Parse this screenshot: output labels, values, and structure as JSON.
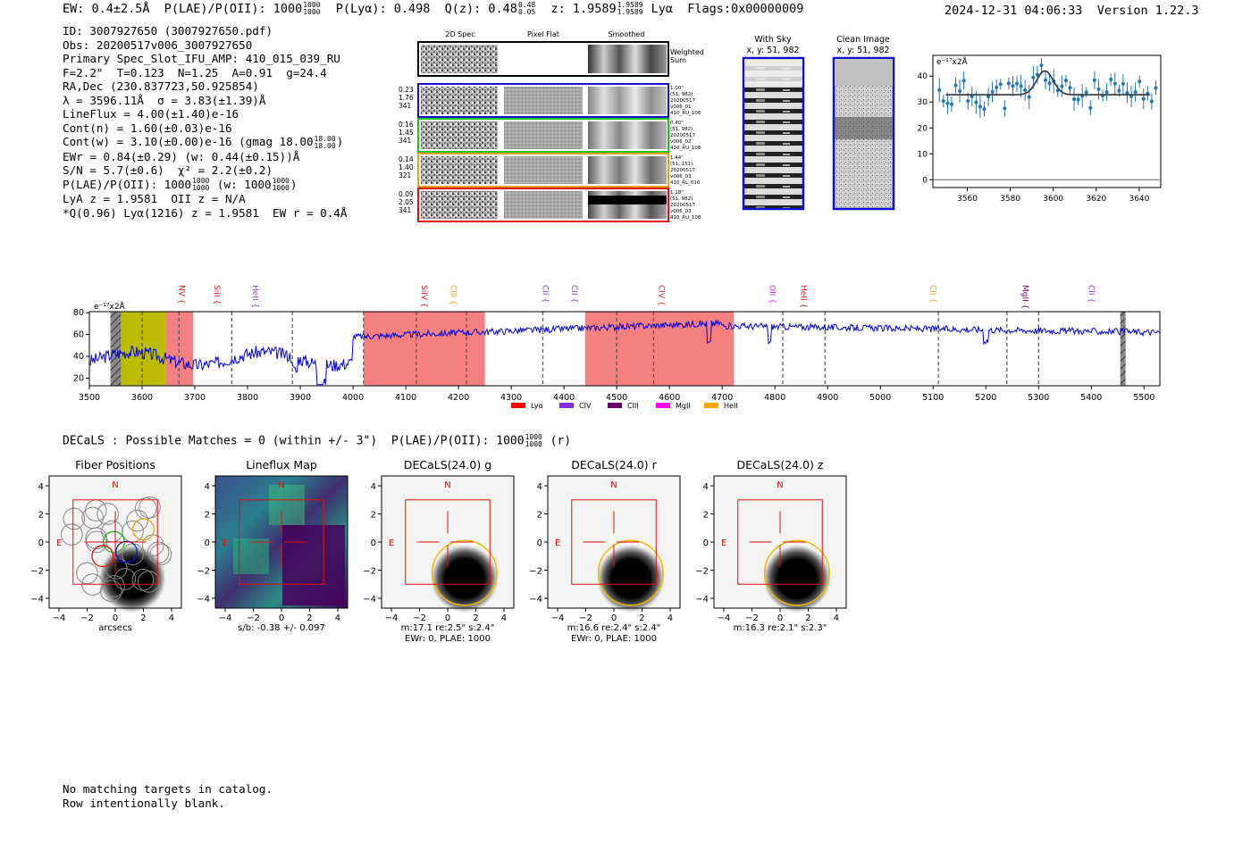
{
  "header": {
    "top_left": "EW: 0.4±2.5Å  P(LAE)/P(OII): 1000",
    "plae_frac": [
      "1000",
      "1000"
    ],
    "plya": "  P(Lyα): 0.498  Q(z): 0.48",
    "qz_frac": [
      "0.48",
      "0.05"
    ],
    "z_text": "  z: 1.9589",
    "z_frac": [
      "1.9589",
      "1.9589"
    ],
    "z_tail": " Lyα  Flags:0x00000009",
    "datetime": "2024-12-31 04:06:33",
    "version": "Version 1.22.3"
  },
  "info_lines": {
    "id": "ID: 3007927650 (3007927650.pdf)",
    "obs": "Obs: 20200517v006_3007927650",
    "primary": "Primary Spec_Slot_IFU_AMP: 410_015_039_RU",
    "fwhm": "F=2.2\"  T=0.123  N=1.25  A=0.91  g=24.4",
    "radec": "RA,Dec (230.837723,50.925854)",
    "lambda": "λ = 3596.11Å  σ = 3.83(±1.39)Å",
    "lineflux": "LineFlux = 4.00(±1.40)e-16",
    "contn": "Cont(n) = 1.60(±0.03)e-16",
    "contw": "Cont(w) = 3.10(±0.00)e-16 (gmag 18.00",
    "gmag_frac": [
      "18.00",
      "18.00"
    ],
    "ewr": "EWr = 0.84(±0.29) (w: 0.44(±0.15))Å",
    "sn": "S/N = 5.7(±0.6)  χ² = 2.2(±0.2)",
    "plae": "P(LAE)/P(OII): 1000",
    "plae_frac": [
      "1000",
      "1000"
    ],
    "plae_w": " (w: 1000",
    "plae_w_frac": [
      "1000",
      "1000"
    ],
    "lya": "LyA z = 1.9581  OII z = N/A",
    "q": "*Q(0.96) Lyα(1216) z = 1.9581  EW r = 0.4Å"
  },
  "cutouts": {
    "col_titles": [
      "2D Spec",
      "Pixel Flat",
      "Smoothed"
    ],
    "weighted_sum": [
      "Weighted",
      "Sum"
    ],
    "rows": [
      {
        "left": [
          "0.23",
          "1.76",
          "341"
        ],
        "right": [
          "1.00\"",
          "(51, 982)",
          "20200517",
          "v006_01",
          "410_RU_108"
        ],
        "color": "#1010d0"
      },
      {
        "left": [
          "0.16",
          "1.45",
          "341"
        ],
        "right": [
          "0.40\"",
          "(51, 982)",
          "20200517",
          "v006_02",
          "410_RU_108"
        ],
        "color": "#20c020"
      },
      {
        "left": [
          "0.14",
          "1.40",
          "321"
        ],
        "right": [
          "1.44\"",
          "(51, 151)",
          "20200517",
          "v006_03",
          "410_RL_016"
        ],
        "color": "#e8a020"
      },
      {
        "left": [
          "0.09",
          "2.05",
          "341"
        ],
        "right": [
          "1.18\"",
          "(51, 982)",
          "20200517",
          "v006_03",
          "410_RU_108"
        ],
        "color": "#e01010"
      }
    ],
    "with_sky": [
      "With Sky",
      "x, y: 51, 982"
    ],
    "clean_image": [
      "Clean Image",
      "x, y: 51, 982"
    ]
  },
  "zoom_chart_data": {
    "type": "scatter",
    "ylabel": "e⁻¹⁷x2Å",
    "xlim": [
      3544,
      3650
    ],
    "ylim": [
      -3,
      48
    ],
    "xticks": [
      3560,
      3580,
      3600,
      3620,
      3640
    ],
    "yticks": [
      0,
      10,
      20,
      30,
      40
    ],
    "gauss": {
      "mu": 3596.1,
      "sigma": 3.83,
      "base": 32.8,
      "amp": 9.2
    }
  },
  "chart_data": {
    "type": "line",
    "ylabel": "e⁻¹⁷x2Å",
    "xlim": [
      3500,
      5530
    ],
    "ylim": [
      13,
      81
    ],
    "xticks": [
      3500,
      3600,
      3700,
      3800,
      3900,
      4000,
      4100,
      4200,
      4300,
      4400,
      4500,
      4600,
      4700,
      4800,
      4900,
      5000,
      5100,
      5200,
      5300,
      5400,
      5500
    ],
    "yticks": [
      20,
      40,
      60,
      80
    ],
    "shaded_regions": [
      {
        "x0": 3540,
        "x1": 3560,
        "kind": "hatch"
      },
      {
        "x0": 3560,
        "x1": 3645,
        "kind": "yellow"
      },
      {
        "x0": 3645,
        "x1": 3697,
        "kind": "red"
      },
      {
        "x0": 4020,
        "x1": 4250,
        "kind": "red"
      },
      {
        "x0": 4440,
        "x1": 4722,
        "kind": "red"
      },
      {
        "x0": 5455,
        "x1": 5465,
        "kind": "hatch"
      }
    ],
    "lines": [
      {
        "label": "NV",
        "x": 3670,
        "color": "#e02020"
      },
      {
        "label": "SiII",
        "x": 3737,
        "color": "#e02020"
      },
      {
        "label": "HeII",
        "x": 3810,
        "color": "#9040e0"
      },
      {
        "label": "SiIV",
        "x": 4130,
        "color": "#e02020"
      },
      {
        "label": "CIII",
        "x": 4185,
        "color": "#e8a020"
      },
      {
        "label": "CII",
        "x": 4360,
        "color": "#9040e0"
      },
      {
        "label": "CII",
        "x": 4415,
        "color": "#9040e0"
      },
      {
        "label": "CIV",
        "x": 4580,
        "color": "#e02020"
      },
      {
        "label": "OII",
        "x": 4790,
        "color": "#e020e0"
      },
      {
        "label": "HeII",
        "x": 4850,
        "color": "#e02020"
      },
      {
        "label": "CII",
        "x": 5095,
        "color": "#e8a020"
      },
      {
        "label": "MgII",
        "x": 5270,
        "color": "#800080"
      },
      {
        "label": "CII",
        "x": 5395,
        "color": "#9040e0"
      }
    ],
    "dashed_lines": [
      3600,
      3670,
      3770,
      3885,
      4020,
      4120,
      4215,
      4360,
      4500,
      4570,
      4815,
      4895,
      5110,
      5240,
      5300
    ],
    "legend": [
      {
        "label": "Lyα",
        "color": "#ff0000"
      },
      {
        "label": "CIV",
        "color": "#8a2be2"
      },
      {
        "label": "CIII",
        "color": "#6a006a"
      },
      {
        "label": "MgII",
        "color": "#ff00ff"
      },
      {
        "label": "HeII",
        "color": "#ffa500"
      }
    ]
  },
  "decals": {
    "line": "DECaLS : Possible Matches = 0 (within +/- 3\")  P(LAE)/P(OII): 1000",
    "frac": [
      "1000",
      "1000"
    ],
    "tail": " (r)",
    "panels": [
      {
        "title": "Fiber Positions",
        "caption": [
          "arcsecs"
        ],
        "kind": "fiber"
      },
      {
        "title": "Lineflux Map",
        "caption": [
          "s/b: -0.38 +/- 0.097"
        ],
        "kind": "flux"
      },
      {
        "title": "DECaLS(24.0) g",
        "caption": [
          "m:17.1  re:2.5\"  s:2.4\"",
          "EWr: 0, PLAE: 1000"
        ],
        "kind": "img"
      },
      {
        "title": "DECaLS(24.0) r",
        "caption": [
          "m:16.6  re:2.4\"  s:2.4\"",
          "EWr: 0, PLAE: 1000"
        ],
        "kind": "img"
      },
      {
        "title": "DECaLS(24.0) z",
        "caption": [
          "m:16.3  re:2.1\"  s:2.3\""
        ],
        "kind": "img"
      }
    ],
    "ticks": [
      "−4",
      "−2",
      "0",
      "2",
      "4"
    ],
    "n_label": "N",
    "e_label": "E"
  },
  "footer": [
    "No matching targets in catalog.",
    "Row intentionally blank."
  ]
}
